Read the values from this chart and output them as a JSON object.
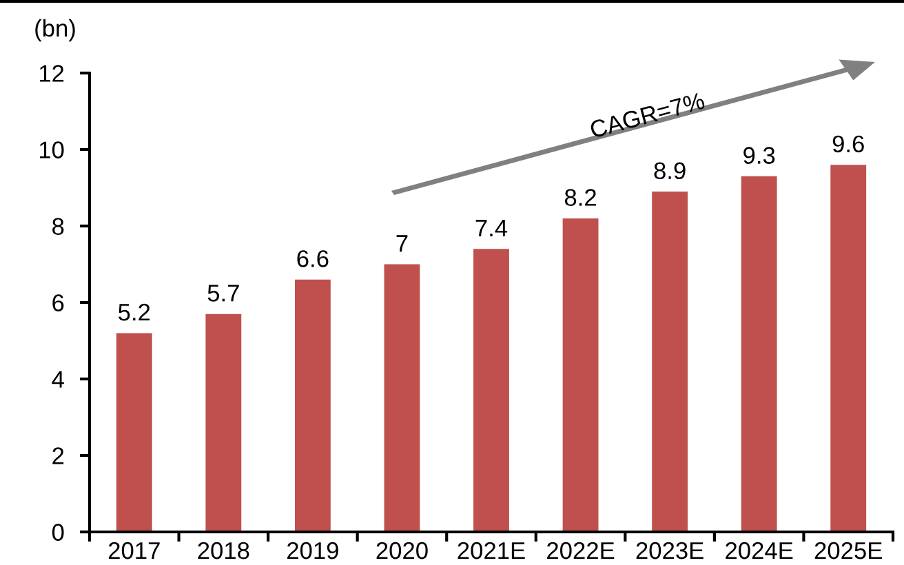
{
  "chart_data": {
    "type": "bar",
    "ylabel": "(bn)",
    "categories": [
      "2017",
      "2018",
      "2019",
      "2020",
      "2021E",
      "2022E",
      "2023E",
      "2024E",
      "2025E"
    ],
    "values": [
      5.2,
      5.7,
      6.6,
      7,
      7.4,
      8.2,
      8.9,
      9.3,
      9.6
    ],
    "color": "#c0504d",
    "ylim": [
      0,
      12
    ],
    "yticks": [
      0,
      2,
      4,
      6,
      8,
      10,
      12
    ],
    "data_labels": true,
    "annotations": [
      "CAGR=7%"
    ]
  }
}
